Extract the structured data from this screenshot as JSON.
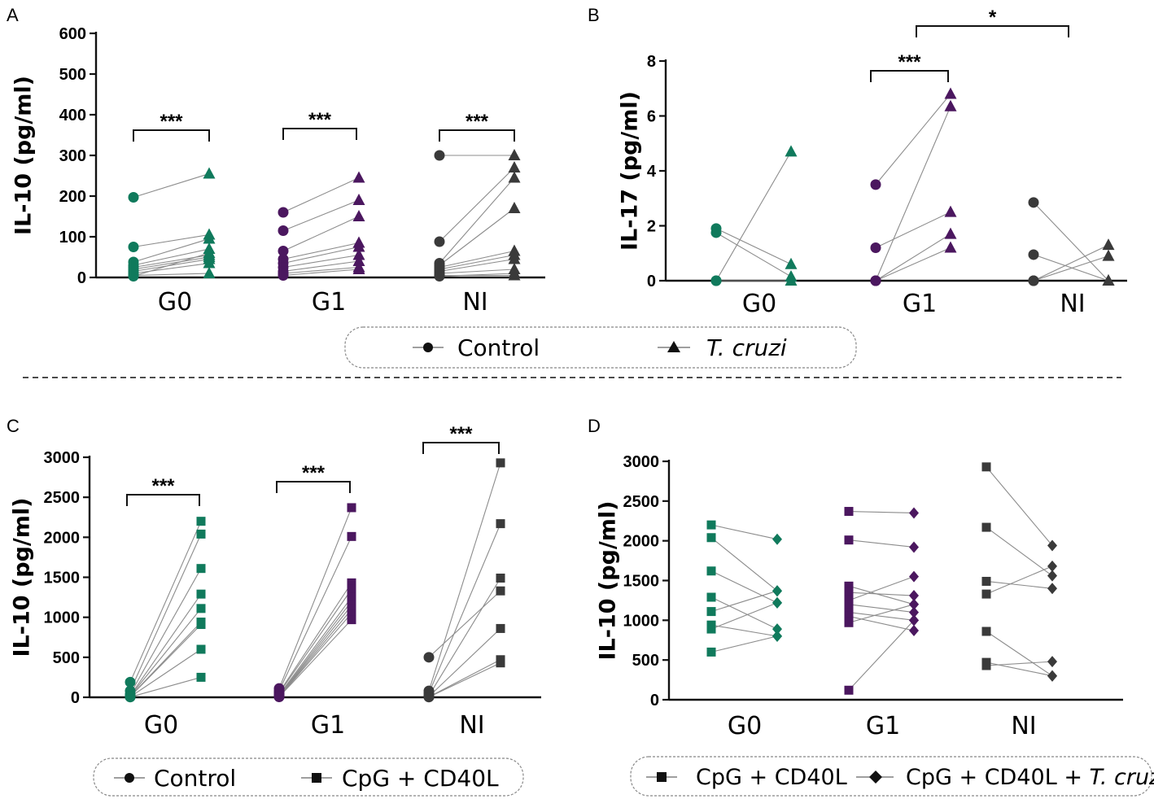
{
  "colors": {
    "G0": "#107a5c",
    "G1": "#4b175f",
    "NI": "#3a3a3a",
    "line": "#8c8c8c",
    "axis": "#111111"
  },
  "legend_top": {
    "items": [
      {
        "label": "Control",
        "marker": "circle",
        "italic": false
      },
      {
        "label": "T. cruzi",
        "marker": "triangle",
        "italic": true
      }
    ]
  },
  "legend_bottom_left": {
    "items": [
      {
        "label": "Control",
        "marker": "circle",
        "italic": false
      },
      {
        "label": "CpG + CD40L",
        "marker": "square",
        "italic": false
      }
    ]
  },
  "legend_bottom_right": {
    "items": [
      {
        "label": "CpG + CD40L",
        "marker": "square",
        "prefix": "",
        "italic_part": ""
      },
      {
        "label": "CpG + CD40L + ",
        "marker": "diamond",
        "italic_part": "T. cruzi"
      }
    ]
  },
  "chart_data": [
    {
      "panel": "A",
      "type": "scatter",
      "ylabel": "IL-10 (pg/ml)",
      "ylim": [
        0,
        600
      ],
      "yticks": [
        0,
        100,
        200,
        300,
        400,
        500,
        600
      ],
      "groups": [
        "G0",
        "G1",
        "NI"
      ],
      "markers": [
        "circle",
        "triangle"
      ],
      "pairs": {
        "G0": [
          [
            197,
            255
          ],
          [
            75,
            105
          ],
          [
            38,
            95
          ],
          [
            30,
            70
          ],
          [
            25,
            55
          ],
          [
            20,
            50
          ],
          [
            15,
            45
          ],
          [
            10,
            35
          ],
          [
            5,
            10
          ],
          [
            3,
            60
          ]
        ],
        "G1": [
          [
            160,
            245
          ],
          [
            115,
            190
          ],
          [
            65,
            150
          ],
          [
            45,
            85
          ],
          [
            35,
            75
          ],
          [
            25,
            55
          ],
          [
            15,
            40
          ],
          [
            10,
            25
          ],
          [
            5,
            20
          ]
        ],
        "NI": [
          [
            300,
            300
          ],
          [
            88,
            270
          ],
          [
            35,
            245
          ],
          [
            30,
            170
          ],
          [
            25,
            65
          ],
          [
            20,
            55
          ],
          [
            15,
            45
          ],
          [
            10,
            20
          ],
          [
            5,
            5
          ],
          [
            3,
            10
          ]
        ]
      },
      "brackets": [
        {
          "from": "G0",
          "to": "G0",
          "label": "***"
        },
        {
          "from": "G1",
          "to": "G1",
          "label": "***"
        },
        {
          "from": "NI",
          "to": "NI",
          "label": "***"
        }
      ]
    },
    {
      "panel": "B",
      "type": "scatter",
      "ylabel": "IL-17 (pg/ml)",
      "ylim": [
        0,
        8
      ],
      "yticks": [
        0,
        2,
        4,
        6,
        8
      ],
      "groups": [
        "G0",
        "G1",
        "NI"
      ],
      "markers": [
        "circle",
        "triangle"
      ],
      "pairs": {
        "G0": [
          [
            0,
            4.7
          ],
          [
            1.9,
            0.6
          ],
          [
            1.75,
            0.15
          ],
          [
            0,
            0
          ]
        ],
        "G1": [
          [
            3.5,
            6.8
          ],
          [
            1.2,
            2.5
          ],
          [
            0,
            1.7
          ],
          [
            0,
            1.2
          ],
          [
            0,
            6.35
          ]
        ],
        "NI": [
          [
            2.85,
            0
          ],
          [
            0.95,
            0
          ],
          [
            0,
            1.3
          ],
          [
            0,
            0.9
          ]
        ]
      },
      "brackets": [
        {
          "from": "G1",
          "to": "G1",
          "label": "***"
        },
        {
          "from": "G1t",
          "to": "NIt",
          "label": "*"
        }
      ]
    },
    {
      "panel": "C",
      "type": "scatter",
      "ylabel": "IL-10 (pg/ml)",
      "ylim": [
        0,
        3000
      ],
      "yticks": [
        0,
        500,
        1000,
        1500,
        2000,
        2500,
        3000
      ],
      "groups": [
        "G0",
        "G1",
        "NI"
      ],
      "markers": [
        "circle",
        "square"
      ],
      "pairs": {
        "G0": [
          [
            190,
            2200
          ],
          [
            80,
            2040
          ],
          [
            40,
            1610
          ],
          [
            20,
            1290
          ],
          [
            15,
            1110
          ],
          [
            10,
            940
          ],
          [
            8,
            910
          ],
          [
            5,
            600
          ],
          [
            3,
            250
          ]
        ],
        "G1": [
          [
            110,
            2370
          ],
          [
            80,
            2010
          ],
          [
            60,
            1430
          ],
          [
            50,
            1350
          ],
          [
            30,
            1250
          ],
          [
            20,
            1200
          ],
          [
            15,
            1150
          ],
          [
            10,
            1100
          ],
          [
            8,
            1050
          ],
          [
            5,
            970
          ]
        ],
        "NI": [
          [
            500,
            1330
          ],
          [
            80,
            2930
          ],
          [
            50,
            2170
          ],
          [
            20,
            1490
          ],
          [
            10,
            860
          ],
          [
            5,
            470
          ],
          [
            3,
            430
          ]
        ]
      },
      "brackets": [
        {
          "from": "G0",
          "to": "G0",
          "label": "***"
        },
        {
          "from": "G1",
          "to": "G1",
          "label": "***"
        },
        {
          "from": "NI",
          "to": "NI",
          "label": "***"
        }
      ]
    },
    {
      "panel": "D",
      "type": "scatter",
      "ylabel": "IL-10 (pg/ml)",
      "ylim": [
        0,
        3000
      ],
      "yticks": [
        0,
        500,
        1000,
        1500,
        2000,
        2500,
        3000
      ],
      "groups": [
        "G0",
        "G1",
        "NI"
      ],
      "markers": [
        "square",
        "diamond"
      ],
      "pairs": {
        "G0": [
          [
            2200,
            2020
          ],
          [
            2040,
            1370
          ],
          [
            1620,
            1220
          ],
          [
            1290,
            890
          ],
          [
            1110,
            1370
          ],
          [
            940,
            800
          ],
          [
            890,
            1220
          ],
          [
            600,
            800
          ]
        ],
        "G1": [
          [
            2370,
            2350
          ],
          [
            2010,
            1920
          ],
          [
            1430,
            1200
          ],
          [
            1350,
            1310
          ],
          [
            1250,
            1550
          ],
          [
            1200,
            1100
          ],
          [
            1100,
            1000
          ],
          [
            1050,
            870
          ],
          [
            970,
            1200
          ],
          [
            120,
            1000
          ]
        ],
        "NI": [
          [
            2930,
            1940
          ],
          [
            2170,
            1560
          ],
          [
            1490,
            1400
          ],
          [
            1330,
            1680
          ],
          [
            860,
            300
          ],
          [
            470,
            300
          ],
          [
            430,
            480
          ]
        ]
      },
      "brackets": []
    }
  ],
  "panel_labels": [
    "A",
    "B",
    "C",
    "D"
  ]
}
